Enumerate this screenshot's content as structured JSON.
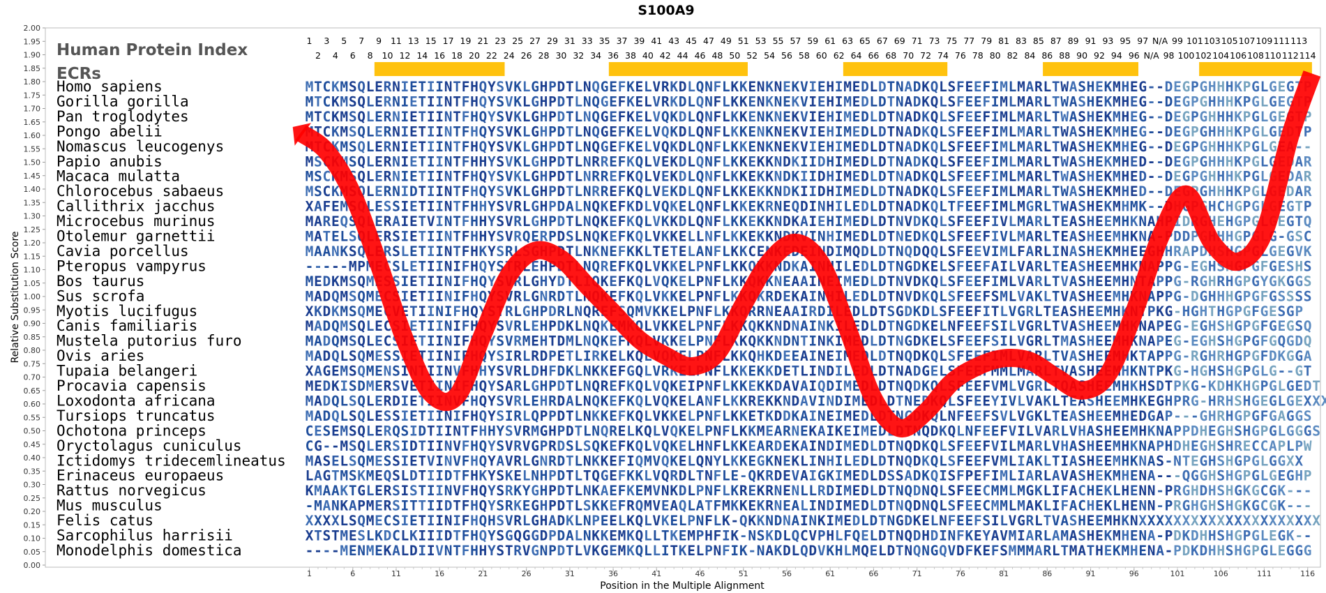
{
  "chart_data": {
    "type": "line",
    "title": "S100A9",
    "xlabel": "Position in the Multiple Alignment",
    "ylabel": "Relative Substitution Score",
    "ylim": [
      0,
      2
    ],
    "yticks": [
      "0.00",
      "0.05",
      "0.10",
      "0.15",
      "0.20",
      "0.25",
      "0.30",
      "0.35",
      "0.40",
      "0.45",
      "0.50",
      "0.55",
      "0.60",
      "0.65",
      "0.70",
      "0.75",
      "0.80",
      "0.85",
      "0.90",
      "0.95",
      "1.00",
      "1.05",
      "1.10",
      "1.15",
      "1.20",
      "1.25",
      "1.30",
      "1.35",
      "1.40",
      "1.45",
      "1.50",
      "1.55",
      "1.60",
      "1.65",
      "1.70",
      "1.75",
      "1.80",
      "1.85",
      "1.90",
      "1.95",
      "2.00"
    ],
    "xticks": [
      "1",
      "6",
      "11",
      "16",
      "21",
      "26",
      "31",
      "36",
      "41",
      "46",
      "51",
      "56",
      "61",
      "66",
      "71",
      "76",
      "81",
      "86",
      "91",
      "96",
      "101",
      "106",
      "111",
      "116"
    ],
    "index_header": "Human Protein Index",
    "ecr_header": "ECRs",
    "index_top": [
      "1",
      "3",
      "5",
      "7",
      "9",
      "11",
      "13",
      "15",
      "17",
      "19",
      "21",
      "23",
      "25",
      "27",
      "29",
      "31",
      "33",
      "35",
      "37",
      "39",
      "41",
      "43",
      "45",
      "47",
      "49",
      "51",
      "53",
      "55",
      "57",
      "59",
      "61",
      "63",
      "65",
      "67",
      "69",
      "71",
      "73",
      "75",
      "77",
      "79",
      "81",
      "83",
      "85",
      "87",
      "89",
      "91",
      "93",
      "95",
      "97",
      "N/A",
      "99",
      "101",
      "103",
      "105",
      "107",
      "109",
      "111",
      "113"
    ],
    "index_bottom": [
      "2",
      "4",
      "6",
      "8",
      "10",
      "12",
      "14",
      "16",
      "18",
      "20",
      "22",
      "24",
      "26",
      "28",
      "30",
      "32",
      "34",
      "36",
      "38",
      "40",
      "42",
      "44",
      "46",
      "48",
      "50",
      "52",
      "54",
      "56",
      "58",
      "60",
      "62",
      "64",
      "66",
      "68",
      "70",
      "72",
      "74",
      "76",
      "78",
      "80",
      "82",
      "84",
      "86",
      "88",
      "90",
      "92",
      "94",
      "96",
      "N/A",
      "98",
      "100",
      "102",
      "104",
      "106",
      "108",
      "110",
      "112",
      "114"
    ],
    "ecr_regions": [
      [
        9,
        23
      ],
      [
        36,
        51
      ],
      [
        63,
        74
      ],
      [
        86,
        96
      ],
      [
        104,
        116
      ]
    ],
    "curve": {
      "color": "#ff0000",
      "x": [
        0,
        3,
        6,
        9,
        12,
        15,
        18,
        21,
        24,
        27,
        30,
        33,
        36,
        39,
        42,
        45,
        48,
        51,
        54,
        57,
        60,
        63,
        66,
        69,
        72,
        75,
        78,
        81,
        84,
        87,
        90,
        93,
        96,
        99,
        102,
        105,
        108,
        111,
        114,
        116.5
      ],
      "y": [
        1.61,
        1.54,
        1.38,
        1.12,
        0.84,
        0.64,
        0.63,
        0.86,
        1.08,
        1.17,
        1.14,
        1.04,
        0.94,
        0.84,
        0.78,
        0.74,
        0.79,
        0.97,
        1.13,
        1.2,
        1.12,
        0.88,
        0.62,
        0.51,
        0.57,
        0.68,
        0.74,
        0.77,
        0.76,
        0.7,
        0.65,
        0.71,
        0.94,
        1.22,
        1.38,
        1.2,
        1.13,
        1.24,
        1.6,
        1.83
      ]
    },
    "species": [
      {
        "name": "Homo sapiens",
        "seq": "MTCKMSQLERNIETIINTFHQYSVKLGHPDTLNQGEFKELVRKDLQNFLKKENKNEKVIEHIMEDLDTNADKQLSFEEFIMLMARLTWASHEKMHEG--DEGPGHHHKPGLGEGTP"
      },
      {
        "name": "Gorilla gorilla",
        "seq": "MTCKMSQLERNIETIINTFHQYSVKLGHPDTLNQGEFKELVRKDLQNFLKKENKNEKVIEHIMEDLDTNADKQLSFEEFIMLMARLTWASHEKMHEG--DEGPGHHHKPGLGEGTP"
      },
      {
        "name": "Pan troglodytes",
        "seq": "MTCKMSQLERNIETIINTFHQYSVKLGHPDTLNQGEFKELVQKDLQNFLKKENKNEKVIEHIMEDLDTNADKQLSFEEFIMLMARLTWASHEKMHEG--DEGPGHHHKPGLGEGTP"
      },
      {
        "name": "Pongo abelii",
        "seq": "MTCKMSQLERNIETIINTFHQYSVKLGHPDTLNQGEFKELVQKDLQNFLKKENKNEKVIEHIMEDLDTNADKQLSFEEFIMLMARLTWASHEKMHEG--DEGPGHHHKPGLGEDTP"
      },
      {
        "name": "Nomascus leucogenys",
        "seq": "MTCKMSQLERNIETIINTFHQYSVKLGHPDTLNQGEFKELVQKDLQNFLKKENKNEKVIEHIMEDLDTNADKQLSFEEFIMLMARLTWASHEKMHEG--DEGPGHHHKPGLGEA--"
      },
      {
        "name": "Papio anubis",
        "seq": "MSCKMSQLERNIETIINTFHHYSVKLGHPDTLNRREFKQLVEKDLQNFLKKEKKNDKIIDHIMEDLDTNADKQLSFEEFIMLMARLTWASHEKMHED--DEGPGHHHKPGLGEDAR"
      },
      {
        "name": "Macaca mulatta",
        "seq": "MSCKMSQLERNIETIINTFHQYSVKLGHPDTLNRREFKQLVEKDLQNFLKKEKKNDKIIDHIMEDLDTNADKQLSFEEFIMLMARLTWASHEKMHED--DEGPGHHHKPGLGEDAR"
      },
      {
        "name": "Chlorocebus sabaeus",
        "seq": "MSCKMSQLERNIDTIINTFHQYSVKLGHPDTLNRREFKQLVEKDLQNFLKKEKKNDKIIDHIMEDLDTNADKQLSFEEFIMLMARLTWASHEKMHED--DEGPGHHHKPGLGEDAR"
      },
      {
        "name": "Callithrix jacchus",
        "seq": "XAFEMSQLESSIETIINTFHHYSVRLGHPDALNQKEFKDLVQKELQNFLKKEKRNEQDINHILEDLDTNADKQLTFEEFIMLMGRLTWASHEKMHMK--DHGPGHCHGPGLGEGTP"
      },
      {
        "name": "Microcebus murinus",
        "seq": "MAREQSQLERAIETVINTFHHYSVRLGHPDTLNQKEFKQLVKKDLQNFLKKEKKNDKAIEHIMEDLDTNVDKQLSFEEFIVLMARLTEASHEEMHKNAHPIDRGHEHGPGLGEGTQ"
      },
      {
        "name": "Otolemur garnettii",
        "seq": "MATELSQLERSIETIINTFHHYSVRQERPDSLNQKEFKQLVKKELLNFLKKEKKNDKVINHIMEDLDTNEDKQLSFEEFIVLMARLTEASHEEMHKNA-PDDPGHHHGPGLG-GSC"
      },
      {
        "name": "Cavia porcellus",
        "seq": "MAANKSQLERSLETIINTFHKYSRLSGHPDTLNKNEFKKLTETELANFLKKCENKEDEINDIMQDLDTNQDQQLSFEEVIMLFARLINASHEKMHEEGHHRAPDHSHGPGLGEGVK"
      },
      {
        "name": "Pteropus vampyrus",
        "seq": "-----MPMECSLETIINIFHQYSTRLEHPDTLNQREFKQLVKKELPNFLKKQKKNDKAINHILEDLDTNGDKELSFEEFAILVARLTEASHEEMHKNAPPG-EGHSHGPGFGESHS"
      },
      {
        "name": "Bos taurus",
        "seq": "MEDKMSQMESSIETIINIFHQYSVRLGHYDTLIQKEFKQLVQKELPNFLKKQKKNEAAINEIMEDLDTNVDKQLSFEEFIMLVARLTVASHEEMHNTAPPG-RGHRHGPGYGKGGS"
      },
      {
        "name": "Sus scrofa",
        "seq": "MADQMSQMECSIETIINIFHQYSVRLGNRDTLNQKEFKQLVKKELPNFLKKQKRDEKAINHILEDLDTNVDKQLSFEEFSMLVAKLTVASHEEMHKNAPPG-DGHHHGPGFGSSSS"
      },
      {
        "name": "Myotis lucifugus",
        "seq": "XKDKMSQMECVETIINIFHQYSTRLGHPDRLNQREFSQMVKKELPNFLKKQRRNEAAIRDILEDLDTSGDKDLSFEEFITLVGRLTEASHEEMHKNTPKG-HGHTHGPGFGESGP"
      },
      {
        "name": "Canis familiaris",
        "seq": "MADQMSQLECSIETIINIFHQYSVRLEHPDKLNQKEMKQLVKKELPNFLKKQKKNDNAINKILEDLDTNGDKELNFEEFSILVGRLTVASHEEMHKNAPEG-EGHSHGPGFGEGSQ"
      },
      {
        "name": "Mustela putorius furo",
        "seq": "MADQMSQLECSIETIINIFHQYSVRMEHTDMLNQKEFKQLVKKELPNFLKKQKKNDNTINKIMEDLDTNGDKELSFEEFSILVGRLTMASHEEMHKNAPEG-EGHSHGPGFGQGDQ"
      },
      {
        "name": "Ovis aries",
        "seq": "MADQLSQMESSIETIINIFHQYSIRLRDPETLIRKELKQLVQKELPNFLKKQHKDEEAINEIMEDLDTNQDKQLSFEEFIMLVARLTVASHEEMHKTAPPG-RGHRHGPGFDKGGA"
      },
      {
        "name": "Tupaia belangeri",
        "seq": "XAGEMSQMENSINTIINVFHHYSVRLDHFDKLNKKEFGQLVRKELPNFLKKEKKDETLINDILEDLDTNADGELSFEEFMMLMARLTVASHEEMHKNTPKG-HGHSHGPGLG--GT"
      },
      {
        "name": "Procavia capensis",
        "seq": "MEDKISDMERSVETIINIFHQYSARLGHPDTLNQREFKQLVQKEIPNFLKKEKKDAVAIQDIMEDLDTNQDKQLSFEEFVMLVGRLTQASHEEMHKHSDTPKG-KDHKHGPGLGEDT"
      },
      {
        "name": "Loxodonta africana",
        "seq": "MADQLSQLERDIETIINVFHQYSVRLEHRDALNQKEFKQLVQKELANFLKKREKKNDAVINDIMEDLDTNEDKQLSFEEYIVLVAKLTEASHEEMHKEGHPRG-HRHSHGEGLGEXXX"
      },
      {
        "name": "Tursiops truncatus",
        "seq": "MADQLSQLESSIETIINIFHQYSIRLQPPDTLNKKEFKQLVKKELPNFLKKETKDDKAINEIMEDLDTNGDKQLNFEEFSVLVGKLTEASHEEMHEDGAP---GHRHGPGFGAGGS"
      },
      {
        "name": "Ochotona princeps",
        "seq": "CESEMSQLERQSIDTIINTFHHYSVRMGHPDTLNQRELKQLVQKELPNFLKKMEARNEKAIKEIMEDLDTNQDKQLNFEEFVILVARLVHASHEEMHKNAPPDHEGHSHGPGLGGGS"
      },
      {
        "name": "Oryctolagus cuniculus",
        "seq": "CG--MSQLERSIDTIINVFHQYSVRVGPRDSLSQKEFKQLVQKELHNFLKKEARDEKAINDIMEDLDTNQDKQLSFEEFVILMARLVHASHEEMHKNAPHDHEGHSHRECCAPLPW"
      },
      {
        "name": "Ictidomys tridecemlineatus",
        "seq": "MASELSQMESSIETVINVFHQYAVRLGNRDTLNKKEFIQMVQKELQNYLKKEGKNEKLINHILEDLDTNQDKQLSFEEFVMLIAKLTIASHEEMHKNAS-NTEGHSHGPGLGGXX"
      },
      {
        "name": "Erinaceus europaeus",
        "seq": "LAGTMSKMEQSLDTIIDTFHKYSKELNHPDTLTQGEFKKLVQRDLTNFLE-QKRDEVAIGKIMEDLDSSADKQISFPEFIMLIARLAVASHEKMHENA---QGGHSHGPGLGEGHP"
      },
      {
        "name": "Rattus norvegicus",
        "seq": "KMAAKTGLERSISTIINVFHQYSRKYGHPDTLNKAEFKEMVNKDLPNFLKREKRNENLLRDIMEDLDTNQDNQLSFEECMMLMGKLIFACHEKLHENN-PRGHDHSHGKGCGK---"
      },
      {
        "name": "Mus musculus",
        "seq": "-MANKAPMERSITTIIDTFHQYSRKEGHPDTLSKKEFRQMVEAQLATFMKKEKRNEALINDIMEDLDTNQDNQLSFEECMMLMAKLIFACHEKLHENN-PRGHGHSHGKGCGK---"
      },
      {
        "name": "Felis catus",
        "seq": "XXXXLSQMECSIETIINIFHQHSVRLGHADKLNPEELKQLVKELPNFLK-QKKNDNAINKIMEDLDTNGDKELNFEEFSILVGRLTVASHEEMHKNXXXXXXXXXXXXXXXXXXXXX"
      },
      {
        "name": "Sarcophilus harrisii",
        "seq": "XTSTMESLKDCLKIIIDTFHQYSGQGGDPDALNKKEMKQLLTKEMPHFIK-NSKDLQCVPHLFQELDTNQDHDINFKEYAVMIARLAMASHEKMHENA-PDKDHHSHGPGLEGK--"
      },
      {
        "name": "Monodelphis domestica",
        "seq": "----MENMEKALDIIVNTFHHYSTRVGNPDTLVKGEMKQLLITKELPNFIK-NAKDLQDVKHLMQELDTNQNGQVDFKEFSMMMARLTMATHEKMHENA-PDKDHHSHGPGLEGGG"
      }
    ]
  }
}
